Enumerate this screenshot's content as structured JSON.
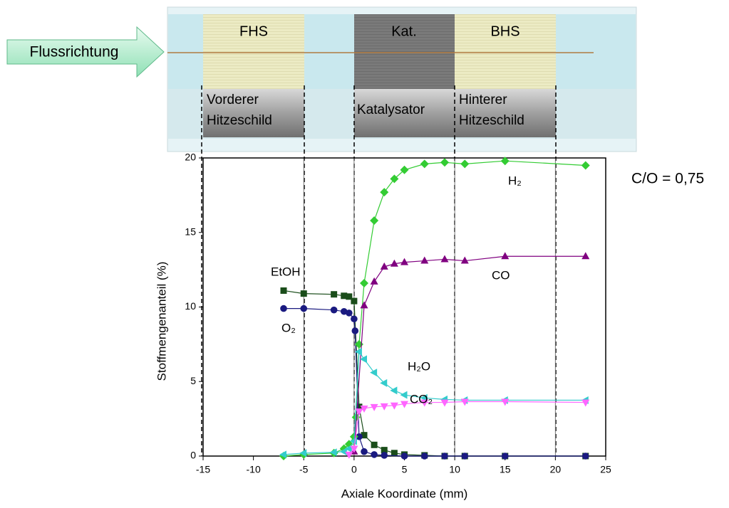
{
  "diagram": {
    "flow_label": "Flussrichtung",
    "sections": [
      {
        "abbr": "FHS",
        "label": [
          "Vorderer",
          "Hitzeschild"
        ]
      },
      {
        "abbr": "Kat.",
        "label": [
          "Katalysator"
        ]
      },
      {
        "abbr": "BHS",
        "label": [
          "Hinterer",
          "Hitzeschild"
        ]
      }
    ]
  },
  "chart_data": {
    "type": "line",
    "xlabel": "Axiale Koordinate (mm)",
    "ylabel": "Stoffmengenanteil (%)",
    "annotation": "C/O = 0,75",
    "xlim": [
      -15,
      25
    ],
    "xticks": [
      -15,
      -10,
      -5,
      0,
      5,
      10,
      15,
      20,
      25
    ],
    "ylim": [
      0,
      20
    ],
    "yticks": [
      0,
      5,
      10,
      15,
      20
    ],
    "vlines": [
      -5,
      0,
      10,
      20
    ],
    "series": [
      {
        "name": "EtOH",
        "color": "#1a4d1a",
        "marker": "square",
        "x": [
          -7,
          -5,
          -2,
          -1,
          -0.5,
          0,
          0.5,
          1,
          2,
          3,
          4,
          5,
          7,
          9,
          11,
          15,
          23
        ],
        "values": [
          11.1,
          10.9,
          10.85,
          10.75,
          10.7,
          10.4,
          3.3,
          1.4,
          0.75,
          0.4,
          0.2,
          0.1,
          0.05,
          0,
          0,
          0,
          0
        ]
      },
      {
        "name": "O₂",
        "color": "#1a1a80",
        "marker": "circle",
        "x": [
          -7,
          -5,
          -2,
          -1,
          -0.5,
          0,
          0.1,
          0.5,
          1,
          2,
          3,
          5,
          7,
          9,
          11,
          15,
          23
        ],
        "values": [
          9.9,
          9.9,
          9.8,
          9.7,
          9.6,
          9.2,
          8.4,
          1.3,
          0.3,
          0.1,
          0.05,
          0,
          0,
          0,
          0,
          0,
          0
        ]
      },
      {
        "name": "H₂",
        "color": "#33cc33",
        "marker": "diamond",
        "x": [
          -7,
          -5,
          -2,
          -1,
          -0.5,
          0,
          0.2,
          0.5,
          1,
          2,
          3,
          4,
          5,
          7,
          9,
          11,
          15,
          23
        ],
        "values": [
          0,
          0.1,
          0.2,
          0.5,
          0.8,
          1.3,
          2.6,
          7.5,
          11.6,
          15.8,
          17.7,
          18.6,
          19.2,
          19.6,
          19.7,
          19.6,
          19.8,
          19.5
        ]
      },
      {
        "name": "CO",
        "color": "#800080",
        "marker": "triangle-up",
        "x": [
          0,
          1,
          2,
          3,
          4,
          5,
          7,
          9,
          11,
          15,
          23
        ],
        "values": [
          0.3,
          10.1,
          11.7,
          12.7,
          12.9,
          13.0,
          13.1,
          13.2,
          13.1,
          13.4,
          13.4
        ]
      },
      {
        "name": "H₂O",
        "color": "#33cccc",
        "marker": "triangle-left",
        "x": [
          -7,
          -5,
          -2,
          -1,
          -0.5,
          0,
          0.5,
          1,
          2,
          3,
          4,
          5,
          7,
          9,
          11,
          15,
          23
        ],
        "values": [
          0.1,
          0.2,
          0.25,
          0.3,
          0.5,
          1.0,
          7.0,
          6.5,
          5.6,
          4.9,
          4.4,
          4.1,
          3.9,
          3.8,
          3.75,
          3.75,
          3.75
        ]
      },
      {
        "name": "CO₂",
        "color": "#ff66ff",
        "marker": "triangle-down",
        "x": [
          -0.5,
          0,
          0.5,
          1,
          2,
          3,
          4,
          5,
          7,
          9,
          11,
          15,
          23
        ],
        "values": [
          0.1,
          0.5,
          3.0,
          3.2,
          3.3,
          3.35,
          3.4,
          3.5,
          3.6,
          3.6,
          3.65,
          3.65,
          3.6
        ]
      }
    ]
  }
}
